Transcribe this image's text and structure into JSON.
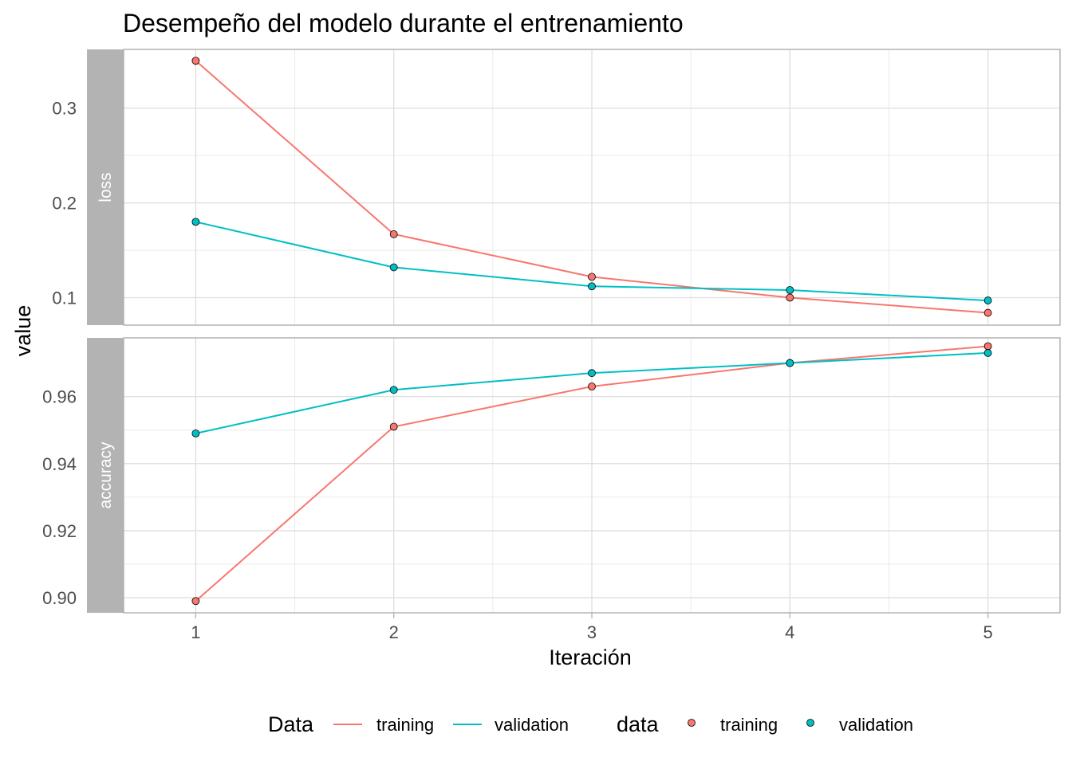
{
  "chart_data": {
    "type": "line",
    "title": "Desempeño del modelo durante el entrenamiento",
    "xlabel": "Iteración",
    "ylabel": "value",
    "x": [
      1,
      2,
      3,
      4,
      5
    ],
    "x_ticks": [
      "1",
      "2",
      "3",
      "4",
      "5"
    ],
    "grid": true,
    "legend_position": "bottom",
    "panels": [
      {
        "strip": "loss",
        "ylim": [
          0.071,
          0.362
        ],
        "y_ticks": [
          "0.1",
          "0.2",
          "0.3"
        ],
        "y_tick_values": [
          0.1,
          0.2,
          0.3
        ],
        "series": [
          {
            "name": "training",
            "values": [
              0.35,
              0.167,
              0.122,
              0.1,
              0.084
            ]
          },
          {
            "name": "validation",
            "values": [
              0.18,
              0.132,
              0.112,
              0.108,
              0.097
            ]
          }
        ]
      },
      {
        "strip": "accuracy",
        "ylim": [
          0.8955,
          0.9775
        ],
        "y_ticks": [
          "0.90",
          "0.92",
          "0.94",
          "0.96"
        ],
        "y_tick_values": [
          0.9,
          0.92,
          0.94,
          0.96
        ],
        "series": [
          {
            "name": "training",
            "values": [
              0.899,
              0.951,
              0.963,
              0.97,
              0.975
            ]
          },
          {
            "name": "validation",
            "values": [
              0.949,
              0.962,
              0.967,
              0.97,
              0.973
            ]
          }
        ]
      }
    ],
    "legends": [
      {
        "title": "Data",
        "kind": "line",
        "labels": [
          "training",
          "validation"
        ]
      },
      {
        "title": "data",
        "kind": "point",
        "labels": [
          "training",
          "validation"
        ]
      }
    ],
    "colors": {
      "training": "#F8766D",
      "validation": "#00BFC4"
    }
  }
}
